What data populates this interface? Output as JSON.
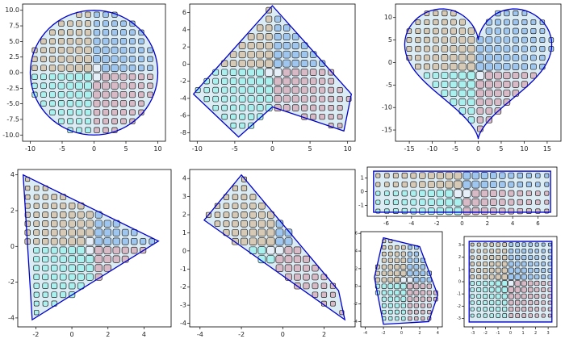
{
  "chart_data": [
    {
      "type": "region",
      "shape": "circle",
      "center": [
        0,
        0
      ],
      "radius": 10,
      "xlim": [
        -11.2,
        11.2
      ],
      "ylim": [
        -11,
        11
      ],
      "xticks": [
        -10,
        -5,
        0,
        5,
        10
      ],
      "yticks": [
        {
          "value": -10,
          "label": "-10.0"
        },
        {
          "value": -7.5,
          "label": "-7.5"
        },
        {
          "value": -5,
          "label": "-5.0"
        },
        {
          "value": -2.5,
          "label": "-2.5"
        },
        {
          "value": 0,
          "label": "0.0"
        },
        {
          "value": 2.5,
          "label": "2.5"
        },
        {
          "value": 5,
          "label": "5.0"
        },
        {
          "value": 7.5,
          "label": "7.5"
        },
        {
          "value": 10,
          "label": "10.0"
        }
      ],
      "color": "#0000cc"
    },
    {
      "type": "region",
      "shape": "polygon",
      "x": [
        0,
        10.5,
        9.5,
        0,
        -4.5,
        -10.5
      ],
      "y": [
        6.8,
        -3.5,
        -7.8,
        -5,
        -8.5,
        -3.5
      ],
      "xlim": [
        -11,
        11
      ],
      "ylim": [
        -9,
        7
      ],
      "xticks": [
        -10,
        -5,
        0,
        5,
        10
      ],
      "yticks": [
        -8,
        -6,
        -4,
        -2,
        0,
        2,
        4,
        6
      ],
      "color": "#0000cc"
    },
    {
      "type": "region",
      "shape": "heart",
      "xlim": [
        -18,
        18
      ],
      "ylim": [
        -17.5,
        13
      ],
      "xticks": [
        -15,
        -10,
        -5,
        0,
        5,
        10,
        15
      ],
      "yticks": [
        -15,
        -10,
        -5,
        0,
        5,
        10
      ],
      "color": "#0000cc"
    },
    {
      "type": "region",
      "shape": "polygon",
      "x": [
        -2.7,
        4.8,
        -2.2
      ],
      "y": [
        4,
        0.3,
        -4.1
      ],
      "xlim": [
        -3,
        5.5
      ],
      "ylim": [
        -4.5,
        4.3
      ],
      "xticks": [
        -2,
        0,
        2,
        4
      ],
      "yticks": [
        -4,
        -2,
        0,
        2,
        4
      ],
      "color": "#0000cc"
    },
    {
      "type": "region",
      "shape": "polygon",
      "x": [
        -2,
        2.7,
        3,
        -3.8
      ],
      "y": [
        4.2,
        -2.2,
        -3.8,
        1.7
      ],
      "xlim": [
        -4.5,
        3.5
      ],
      "ylim": [
        -4.2,
        4.5
      ],
      "xticks": [
        -4,
        -2,
        0,
        2
      ],
      "yticks": [
        -4,
        -3,
        -2,
        -1,
        0,
        1,
        2,
        3,
        4
      ],
      "color": "#0000cc"
    },
    {
      "type": "region",
      "shape": "polygon",
      "x": [
        -7,
        7,
        7,
        -7
      ],
      "y": [
        1.5,
        1.5,
        -1.5,
        -1.5
      ],
      "xlim": [
        -7.5,
        7.5
      ],
      "ylim": [
        -1.8,
        1.8
      ],
      "xticks": [
        -6,
        -4,
        -2,
        0,
        2,
        4,
        6
      ],
      "yticks": [
        -1,
        0,
        1
      ],
      "color": "#0000cc"
    },
    {
      "type": "region",
      "shape": "polygon",
      "x": [
        -2,
        2,
        4,
        3,
        -2,
        -3
      ],
      "y": [
        5.5,
        4.5,
        -1,
        -4,
        -4.3,
        1
      ],
      "xlim": [
        -4.5,
        4.5
      ],
      "ylim": [
        -4.6,
        6.2
      ],
      "xticks": [
        -4,
        -2,
        0,
        2,
        4
      ],
      "yticks": [
        -4,
        -2,
        0,
        2,
        4,
        6
      ],
      "color": "#0000cc"
    },
    {
      "type": "region",
      "shape": "polygon",
      "x": [
        -3.3,
        3.3,
        3.3,
        -3.3
      ],
      "y": [
        3.3,
        3.3,
        -3.3,
        -3.3
      ],
      "xlim": [
        -3.7,
        3.7
      ],
      "ylim": [
        -3.7,
        3.7
      ],
      "xticks": [
        -3,
        -2,
        -1,
        0,
        1,
        2,
        3
      ],
      "yticks": [
        -3,
        -2,
        -1,
        0,
        1,
        2,
        3
      ],
      "color": "#0000cc"
    }
  ]
}
